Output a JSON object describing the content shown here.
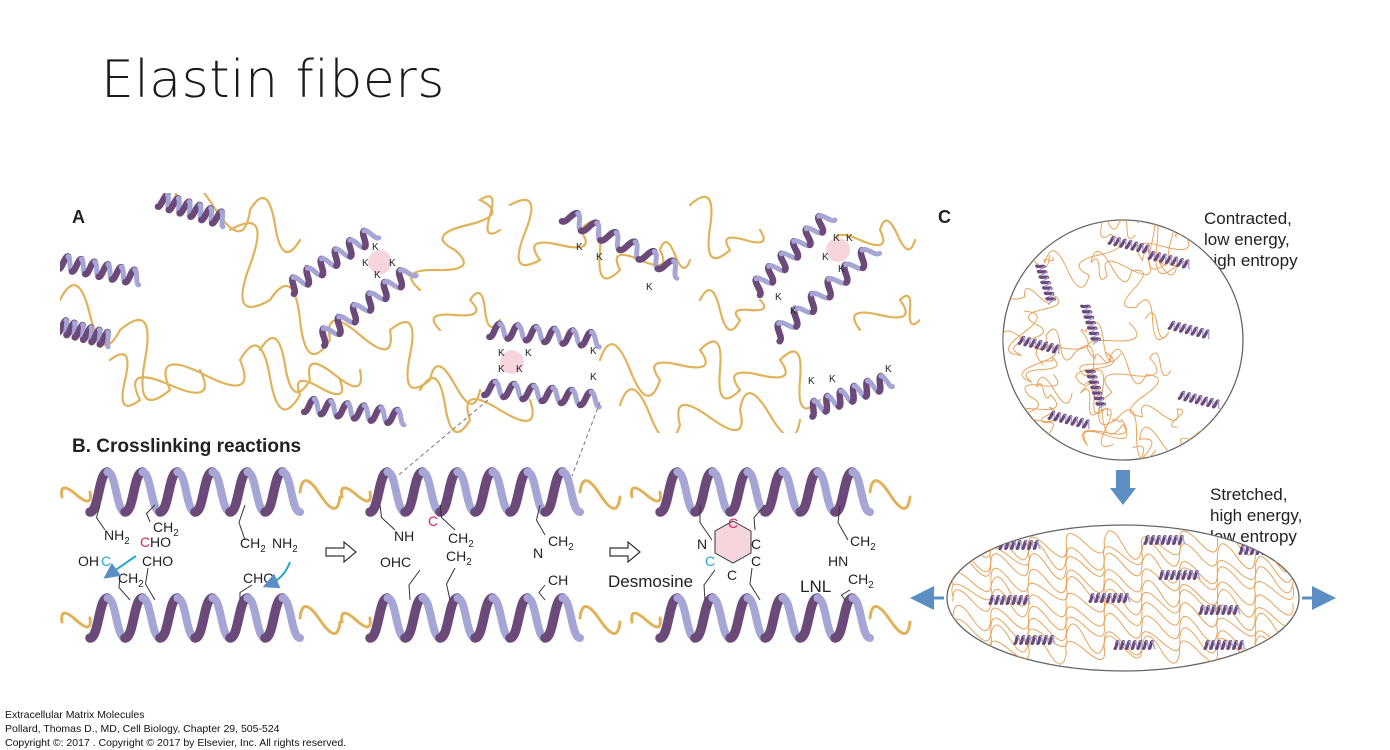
{
  "title": "Elastin fibers",
  "figure": {
    "panel_a_label": "A",
    "panel_b_label": "B. Crosslinking reactions",
    "panel_c_label": "C",
    "lysine_label": "K",
    "chem": {
      "nh2": "NH",
      "ch2": "CH",
      "cho": "CHO",
      "ohc": "OHC",
      "ch2_nh2": "CH",
      "ch": "CH",
      "nh": "NH",
      "hn": "HN",
      "n": "N",
      "c": "C",
      "sub2": "2"
    },
    "product_desmosine": "Desmosine",
    "product_lnl": "LNL",
    "contracted_label": [
      "Contracted,",
      "low energy,",
      "high entropy"
    ],
    "stretched_label": [
      "Stretched,",
      "high energy,",
      "low entropy"
    ],
    "colors": {
      "helix": "#a6a6d6",
      "helix_dark": "#6b4a7a",
      "coil": "#e0b25a",
      "crosslink": "#f6d6dc",
      "magenta": "#e0206a",
      "cyan": "#20a8d0",
      "arrow_blue": "#5b8fc4"
    }
  },
  "citation": {
    "line1": "Extracellular Matrix Molecules",
    "line2": "Pollard, Thomas D., MD, Cell Biology, Chapter 29, 505-524",
    "line3": "Copyright ©: 2017 . Copyright © 2017 by Elsevier, Inc. All rights reserved."
  }
}
